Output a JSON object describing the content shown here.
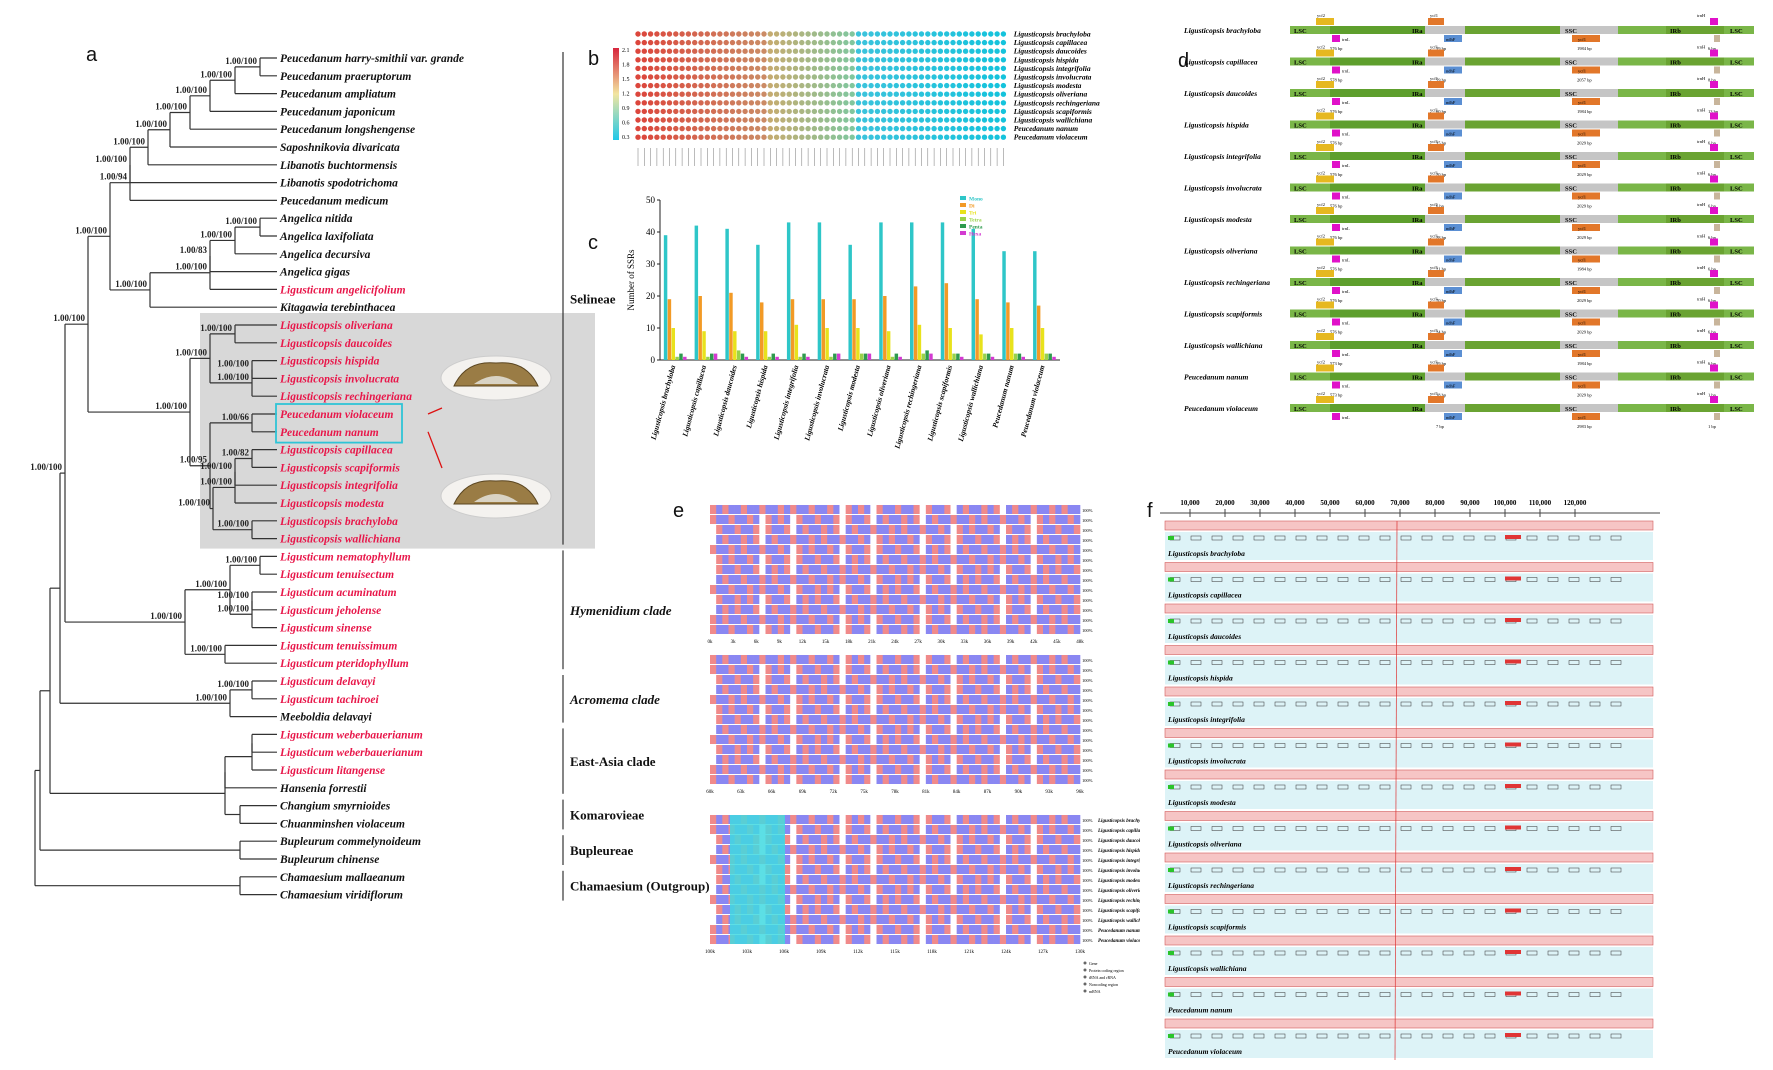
{
  "panel_labels": {
    "a": "a",
    "b": "b",
    "c": "c",
    "d": "d",
    "e": "e",
    "f": "f"
  },
  "colors": {
    "red_taxon": "#e8174a",
    "black_taxon": "#111111",
    "highlight": "#2fc4d6",
    "gray_shade": "#d8d8d8"
  },
  "tree": {
    "taxa": [
      {
        "name": "Peucedanum harry-smithii var. grande",
        "red": false
      },
      {
        "name": "Peucedanum praeruptorum",
        "red": false
      },
      {
        "name": "Peucedanum ampliatum",
        "red": false
      },
      {
        "name": "Peucedanum japonicum",
        "red": false
      },
      {
        "name": "Peucedanum longshengense",
        "red": false
      },
      {
        "name": "Saposhnikovia divaricata",
        "red": false
      },
      {
        "name": "Libanotis buchtormensis",
        "red": false
      },
      {
        "name": "Libanotis spodotrichoma",
        "red": false
      },
      {
        "name": "Peucedanum medicum",
        "red": false
      },
      {
        "name": "Angelica nitida",
        "red": false
      },
      {
        "name": "Angelica laxifoliata",
        "red": false
      },
      {
        "name": "Angelica decursiva",
        "red": false
      },
      {
        "name": "Angelica gigas",
        "red": false
      },
      {
        "name": "Ligusticum angelicifolium",
        "red": true
      },
      {
        "name": "Kitagawia terebinthacea",
        "red": false
      },
      {
        "name": "Ligusticopsis oliveriana",
        "red": true
      },
      {
        "name": "Ligusticopsis daucoides",
        "red": true
      },
      {
        "name": "Ligusticopsis hispida",
        "red": true
      },
      {
        "name": "Ligusticopsis involucrata",
        "red": true
      },
      {
        "name": "Ligusticopsis rechingeriana",
        "red": true
      },
      {
        "name": "Peucedanum violaceum",
        "red": true
      },
      {
        "name": "Peucedanum nanum",
        "red": true
      },
      {
        "name": "Ligusticopsis capillacea",
        "red": true
      },
      {
        "name": "Ligusticopsis scapiformis",
        "red": true
      },
      {
        "name": "Ligusticopsis integrifolia",
        "red": true
      },
      {
        "name": "Ligusticopsis modesta",
        "red": true
      },
      {
        "name": "Ligusticopsis brachyloba",
        "red": true
      },
      {
        "name": "Ligusticopsis wallichiana",
        "red": true
      },
      {
        "name": "Ligusticum nematophyllum",
        "red": true
      },
      {
        "name": "Ligusticum tenuisectum",
        "red": true
      },
      {
        "name": "Ligusticum acuminatum",
        "red": true
      },
      {
        "name": "Ligusticum jeholense",
        "red": true
      },
      {
        "name": "Ligusticum sinense",
        "red": true
      },
      {
        "name": "Ligusticum tenuissimum",
        "red": true
      },
      {
        "name": "Ligusticum pteridophyllum",
        "red": true
      },
      {
        "name": "Ligusticum delavayi",
        "red": true
      },
      {
        "name": "Ligusticum tachiroei",
        "red": true
      },
      {
        "name": "Meeboldia delavayi",
        "red": false
      },
      {
        "name": "Ligusticum weberbauerianum",
        "red": true
      },
      {
        "name": "Ligusticum weberbauerianum",
        "red": true
      },
      {
        "name": "Ligusticum litangense",
        "red": true
      },
      {
        "name": "Hansenia forrestii",
        "red": false
      },
      {
        "name": "Changium smyrnioides",
        "red": false
      },
      {
        "name": "Chuanminshen violaceum",
        "red": false
      },
      {
        "name": "Bupleurum commelynoideum",
        "red": false
      },
      {
        "name": "Bupleurum chinense",
        "red": false
      },
      {
        "name": "Chamaesium mallaeanum",
        "red": false
      },
      {
        "name": "Chamaesium viridiflorum",
        "red": false
      }
    ],
    "supports": [
      "1.00/100",
      "1.00/100",
      "1.00/100",
      "1.00/100",
      "1.00/100",
      "1.00/100",
      "1.00/100",
      "1.00/94",
      "1.00/100",
      "1.00/100",
      "1.00/83",
      "1.00/100",
      "1.00/100",
      "1.00/100",
      "1.00/100",
      "1.00/100",
      "1.00/100",
      "1.00/100",
      "1.00/66",
      "1.00/82",
      "1.00/100",
      "1.00/100",
      "1.00/100",
      "1.00/100",
      "1.00/95",
      "1.00/100",
      "1.00/100",
      "1.00/100",
      "1.00/100",
      "1.00/100",
      "1.00/100",
      "1.00/100",
      "1.00/100",
      "1.00/100",
      "1.00/100",
      "1.00/100"
    ],
    "groups": [
      "Selineae",
      "Hymenidium clade",
      "Acromema clade",
      "East-Asia clade",
      "Komarovieae",
      "Bupleureae",
      "Chamaesium (Outgroup)"
    ]
  },
  "species14": [
    "Ligusticopsis brachyloba",
    "Ligusticopsis capillacea",
    "Ligusticopsis daucoides",
    "Ligusticopsis hispida",
    "Ligusticopsis integrifolia",
    "Ligusticopsis involucrata",
    "Ligusticopsis modesta",
    "Ligusticopsis oliveriana",
    "Ligusticopsis rechingeriana",
    "Ligusticopsis scapiformis",
    "Ligusticopsis wallichiana",
    "Peucedanum nanum",
    "Peucedanum violaceum"
  ],
  "panel_b": {
    "scale_ticks": [
      "2.1",
      "1.8",
      "1.5",
      "1.2",
      "0.9",
      "0.6",
      "0.3"
    ]
  },
  "chart_data": {
    "type": "bar",
    "ylabel": "Number of SSRs",
    "ylim": [
      0,
      50
    ],
    "yticks": [
      "0",
      "10",
      "20",
      "30",
      "40",
      "50"
    ],
    "categories": [
      "Ligusticopsis brachyloba",
      "Ligusticopsis capillacea",
      "Ligusticopsis daucoides",
      "Ligusticopsis hispida",
      "Ligusticopsis integrifolia",
      "Ligusticopsis involucrata",
      "Ligusticopsis modesta",
      "Ligusticopsis oliveriana",
      "Ligusticopsis rechingeriana",
      "Ligusticopsis scapiformis",
      "Ligusticopsis wallichiana",
      "Peucedanum nanum",
      "Peucedanum violaceum"
    ],
    "series": [
      {
        "name": "Mono",
        "color": "#2ec6c8",
        "values": [
          39,
          42,
          41,
          36,
          43,
          43,
          36,
          43,
          43,
          43,
          41,
          34,
          34
        ]
      },
      {
        "name": "Di",
        "color": "#f29a26",
        "values": [
          19,
          20,
          21,
          18,
          19,
          19,
          19,
          20,
          23,
          24,
          19,
          18,
          17
        ]
      },
      {
        "name": "Tri",
        "color": "#e8e21c",
        "values": [
          10,
          9,
          9,
          9,
          11,
          10,
          10,
          9,
          11,
          10,
          8,
          10,
          10
        ]
      },
      {
        "name": "Tetra",
        "color": "#9ad24a",
        "values": [
          1,
          1,
          3,
          1,
          1,
          1,
          2,
          1,
          2,
          2,
          2,
          2,
          2
        ]
      },
      {
        "name": "Penta",
        "color": "#2e9a4e",
        "values": [
          2,
          2,
          2,
          2,
          2,
          2,
          2,
          2,
          3,
          2,
          2,
          2,
          2
        ]
      },
      {
        "name": "Hexa",
        "color": "#d33bd1",
        "values": [
          1,
          2,
          1,
          1,
          1,
          2,
          2,
          1,
          2,
          1,
          1,
          1,
          1
        ]
      }
    ]
  },
  "panel_d": {
    "regions": [
      "LSC",
      "IRa",
      "SSC",
      "IRb",
      "LSC"
    ],
    "genes": [
      "ycf2",
      "trnL",
      "ycf1",
      "ndhF",
      "ycf1",
      "trnH",
      "trnH"
    ],
    "rows": [
      {
        "a": "576 bp",
        "b": "59 bp",
        "c": "1984 bp",
        "d": "6 bp"
      },
      {
        "a": "578 bp",
        "b": "59 bp",
        "c": "2057 bp",
        "d": "8 bp"
      },
      {
        "a": "576 bp",
        "b": "60 bp",
        "c": "1984 bp",
        "d": "13 bp"
      },
      {
        "a": "576 bp",
        "b": "35 bp",
        "c": "2029 bp",
        "d": "6 bp"
      },
      {
        "a": "576 bp",
        "b": "20 bp",
        "c": "2029 bp",
        "d": "6 bp"
      },
      {
        "a": "576 bp",
        "b": "6 bp",
        "c": "2029 bp",
        "d": "6 bp"
      },
      {
        "a": "576 bp",
        "b": "28 bp",
        "c": "2029 bp",
        "d": "6 bp"
      },
      {
        "a": "576 bp",
        "b": "21 bp",
        "c": "1984 bp",
        "d": "6 bp"
      },
      {
        "a": "576 bp",
        "b": "70 bp",
        "c": "2029 bp",
        "d": "6 bp"
      },
      {
        "a": "576 bp",
        "b": "24 bp",
        "c": "2029 bp",
        "d": "6 bp"
      },
      {
        "a": "573 bp",
        "b": "59 bp",
        "c": "1984 bp",
        "d": "6 bp"
      },
      {
        "a": "573 bp",
        "b": "18 bp",
        "c": "2029 bp",
        "d": "1 bp"
      },
      {
        "a": "",
        "b": "7 bp",
        "c": "2983 bp",
        "d": "1 bp"
      }
    ]
  },
  "panel_e": {
    "axis1": [
      "0k",
      "3k",
      "6k",
      "9k",
      "12k",
      "15k",
      "18k",
      "21k",
      "24k",
      "27k",
      "30k",
      "33k",
      "36k",
      "39k",
      "42k",
      "45k",
      "48k"
    ],
    "axis2": [
      "60k",
      "63k",
      "66k",
      "69k",
      "72k",
      "75k",
      "78k",
      "81k",
      "84k",
      "87k",
      "90k",
      "93k",
      "96k"
    ],
    "axis3": [
      "100k",
      "103k",
      "106k",
      "109k",
      "112k",
      "115k",
      "118k",
      "121k",
      "124k",
      "127k",
      "130k"
    ],
    "legend": [
      "Gene",
      "Protein coding region",
      "tRNA and rRNA",
      "Noncoding region",
      "mRNA"
    ],
    "percent": "100%"
  },
  "panel_f": {
    "axis": [
      "10,000",
      "20,000",
      "30,000",
      "40,000",
      "50,000",
      "60,000",
      "70,000",
      "80,000",
      "90,000",
      "100,000",
      "110,000",
      "120,000"
    ]
  }
}
